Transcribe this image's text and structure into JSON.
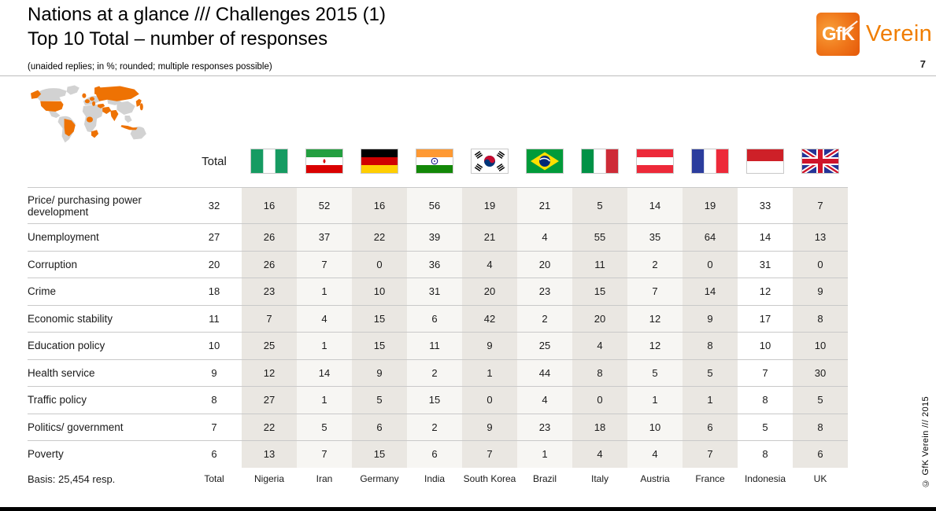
{
  "slide": {
    "title_line1": "Nations at a glance /// Challenges 2015 (1)",
    "title_line2": "Top 10 Total – number of responses",
    "subtitle": "(unaided replies; in %; rounded; multiple responses possible)",
    "page_number": "7",
    "copyright": "© GfK Verein /// 2015"
  },
  "logo": {
    "square_text": "GfK",
    "wordmark": "Verein"
  },
  "colors": {
    "brand_orange": "#F07D00",
    "map_highlight_orange": "#EE7203",
    "map_gray": "#D2D2D2",
    "band_beige": "#EAE7E2",
    "band_light": "#F7F6F3",
    "rule_gray": "#C9C9C9",
    "bottom_bar_black": "#000000"
  },
  "icons": {
    "world_map": "world-map-thumbnail",
    "flags": [
      "nigeria-flag-icon",
      "iran-flag-icon",
      "germany-flag-icon",
      "india-flag-icon",
      "south-korea-flag-icon",
      "brazil-flag-icon",
      "italy-flag-icon",
      "austria-flag-icon",
      "france-flag-icon",
      "indonesia-flag-icon",
      "uk-flag-icon"
    ]
  },
  "chart_data": {
    "type": "table",
    "title": "Nations at a glance /// Challenges 2015 (1) — Top 10 Total – number of responses",
    "unit": "unaided replies; in %; rounded; multiple responses possible",
    "columns": [
      {
        "label": "Total",
        "flag": null,
        "band": "white"
      },
      {
        "label": "Nigeria",
        "flag": "ng",
        "band": "beige"
      },
      {
        "label": "Iran",
        "flag": "ir",
        "band": "light"
      },
      {
        "label": "Germany",
        "flag": "de",
        "band": "beige"
      },
      {
        "label": "India",
        "flag": "in",
        "band": "light"
      },
      {
        "label": "South Korea",
        "flag": "kr",
        "band": "beige"
      },
      {
        "label": "Brazil",
        "flag": "br",
        "band": "light"
      },
      {
        "label": "Italy",
        "flag": "it",
        "band": "beige"
      },
      {
        "label": "Austria",
        "flag": "at",
        "band": "light"
      },
      {
        "label": "France",
        "flag": "fr",
        "band": "beige"
      },
      {
        "label": "Indonesia",
        "flag": "id",
        "band": "white"
      },
      {
        "label": "UK",
        "flag": "gb",
        "band": "beige"
      }
    ],
    "rows": [
      {
        "label": "Price/ purchasing power development",
        "values": [
          32,
          16,
          52,
          16,
          56,
          19,
          21,
          5,
          14,
          19,
          33,
          7
        ]
      },
      {
        "label": "Unemployment",
        "values": [
          27,
          26,
          37,
          22,
          39,
          21,
          4,
          55,
          35,
          64,
          14,
          13
        ]
      },
      {
        "label": "Corruption",
        "values": [
          20,
          26,
          7,
          0,
          36,
          4,
          20,
          11,
          2,
          0,
          31,
          0
        ]
      },
      {
        "label": "Crime",
        "values": [
          18,
          23,
          1,
          10,
          31,
          20,
          23,
          15,
          7,
          14,
          12,
          9
        ]
      },
      {
        "label": "Economic stability",
        "values": [
          11,
          7,
          4,
          15,
          6,
          42,
          2,
          20,
          12,
          9,
          17,
          8
        ]
      },
      {
        "label": "Education policy",
        "values": [
          10,
          25,
          1,
          15,
          11,
          9,
          25,
          4,
          12,
          8,
          10,
          10
        ]
      },
      {
        "label": "Health service",
        "values": [
          9,
          12,
          14,
          9,
          2,
          1,
          44,
          8,
          5,
          5,
          7,
          30
        ]
      },
      {
        "label": "Traffic policy",
        "values": [
          8,
          27,
          1,
          5,
          15,
          0,
          4,
          0,
          1,
          1,
          8,
          5
        ]
      },
      {
        "label": "Politics/ government",
        "values": [
          7,
          22,
          5,
          6,
          2,
          9,
          23,
          18,
          10,
          6,
          5,
          8
        ]
      },
      {
        "label": "Poverty",
        "values": [
          6,
          13,
          7,
          15,
          6,
          7,
          1,
          4,
          4,
          7,
          8,
          6
        ]
      }
    ],
    "basis_label": "Basis: 25,454 resp."
  }
}
